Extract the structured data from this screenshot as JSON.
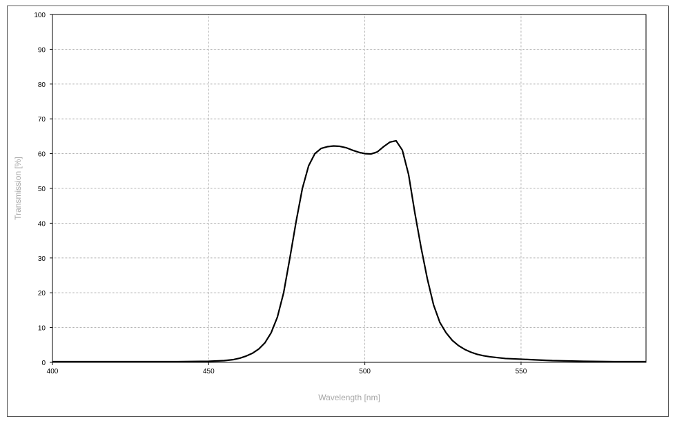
{
  "chart_data": {
    "type": "line",
    "x_label": "Wavelength [nm]",
    "y_label": "Transmission [%]",
    "x": [
      400,
      410,
      420,
      430,
      440,
      450,
      455,
      458,
      460,
      462,
      464,
      466,
      468,
      470,
      472,
      474,
      476,
      478,
      480,
      482,
      484,
      486,
      488,
      490,
      492,
      494,
      496,
      498,
      500,
      502,
      504,
      506,
      508,
      510,
      512,
      514,
      516,
      518,
      520,
      522,
      524,
      526,
      528,
      530,
      532,
      534,
      536,
      538,
      540,
      545,
      550,
      555,
      560,
      570,
      580,
      590
    ],
    "series": [
      {
        "name": "Transmission",
        "color": "#000000",
        "values": [
          0.2,
          0.2,
          0.2,
          0.2,
          0.2,
          0.3,
          0.5,
          0.8,
          1.2,
          1.8,
          2.6,
          3.8,
          5.6,
          8.5,
          13,
          20,
          30,
          40.5,
          50,
          56.5,
          60,
          61.5,
          62,
          62.2,
          62.1,
          61.7,
          61,
          60.4,
          60,
          59.9,
          60.5,
          62,
          63.3,
          63.7,
          61,
          54,
          43,
          33,
          24,
          16.5,
          11.5,
          8.5,
          6.3,
          4.8,
          3.7,
          2.9,
          2.3,
          1.9,
          1.6,
          1.1,
          0.9,
          0.7,
          0.5,
          0.3,
          0.2,
          0.2
        ]
      }
    ],
    "xlim": [
      400,
      590
    ],
    "ylim": [
      0,
      100
    ],
    "xticks": [
      400,
      450,
      500,
      550
    ],
    "yticks": [
      0,
      10,
      20,
      30,
      40,
      50,
      60,
      70,
      80,
      90,
      100
    ],
    "grid": true
  }
}
